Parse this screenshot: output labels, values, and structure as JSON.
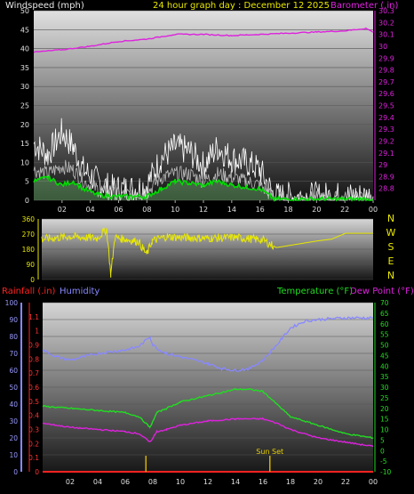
{
  "header": {
    "windspeed_label": "Windspeed (mph)",
    "title": "24 hour graph day : December 12 2025",
    "barometer_label": "Barometer (.in)"
  },
  "bottom_header": {
    "rainfall_label": "Rainfall (.in)",
    "humidity_label": "Humidity",
    "temperature_label": "Temperature (°F)",
    "dewpoint_label": "Dew Point (°F)"
  },
  "colors": {
    "windspeed": "#ffffff",
    "gust": "#ffffff",
    "wind_avg": "#00dd00",
    "barometer": "#dd22dd",
    "direction": "#e8e800",
    "rainfall": "#ff2222",
    "humidity": "#8888ff",
    "temperature": "#22dd22",
    "dewpoint": "#dd22dd",
    "sunmarker": "#d4b000"
  },
  "chart_data": [
    {
      "type": "line",
      "name_hint": "wind-barometer",
      "x_ticks": [
        "02",
        "04",
        "06",
        "08",
        "10",
        "12",
        "14",
        "16",
        "18",
        "20",
        "22",
        "00"
      ],
      "xlim": [
        0,
        24
      ],
      "left_axis": {
        "label": "Windspeed (mph)",
        "ylim": [
          0,
          50
        ],
        "ticks": [
          "0",
          "5",
          "10",
          "15",
          "20",
          "25",
          "30",
          "35",
          "40",
          "45",
          "50"
        ]
      },
      "right_axis": {
        "label": "Barometer (.in)",
        "ylim": [
          28.7,
          30.3
        ],
        "ticks": [
          "28.8",
          "28.9",
          "29",
          "29.1",
          "29.2",
          "29.3",
          "29.4",
          "29.5",
          "29.6",
          "29.7",
          "29.8",
          "29.9",
          "30",
          "30.1",
          "30.2",
          "30.3"
        ]
      },
      "series": [
        {
          "name": "Barometer (.in)",
          "axis": "right",
          "x": [
            0,
            2,
            4,
            6,
            8,
            10,
            12,
            14,
            16,
            18,
            20,
            22,
            23.5,
            24
          ],
          "y": [
            29.95,
            29.97,
            30.0,
            30.04,
            30.06,
            30.1,
            30.1,
            30.09,
            30.1,
            30.11,
            30.12,
            30.13,
            30.15,
            30.12
          ]
        },
        {
          "name": "Wind gust",
          "axis": "left",
          "x": [
            0,
            1,
            2,
            2.8,
            3.5,
            4.5,
            5.5,
            7,
            8,
            9,
            10,
            11,
            12,
            13,
            14,
            15,
            16,
            17,
            24
          ],
          "y": [
            15,
            12,
            18,
            14,
            8,
            5,
            3,
            3,
            4,
            11,
            14,
            13,
            9,
            14,
            11,
            10,
            8,
            1,
            1
          ]
        },
        {
          "name": "Wind speed",
          "axis": "left",
          "x": [
            0,
            1,
            2,
            2.8,
            3.5,
            4.5,
            5.5,
            7,
            8,
            9,
            10,
            11,
            12,
            13,
            14,
            15,
            16,
            17,
            24
          ],
          "y": [
            8,
            7,
            9,
            8,
            5,
            3,
            1.5,
            1.5,
            2,
            6,
            7,
            7,
            5,
            7,
            6,
            5,
            4,
            0.5,
            0.5
          ]
        },
        {
          "name": "Wind average",
          "axis": "left",
          "x": [
            0,
            1,
            2,
            2.8,
            3.5,
            4.5,
            5.5,
            7,
            8,
            9,
            10,
            11,
            12,
            13,
            14,
            15,
            16,
            17,
            24
          ],
          "y": [
            5,
            6,
            4,
            5,
            3,
            1.5,
            1,
            1,
            1,
            3,
            5,
            4.5,
            4,
            5,
            4,
            3.5,
            3,
            0.3,
            0.3
          ]
        }
      ]
    },
    {
      "type": "line",
      "name_hint": "wind-direction",
      "left_axis": {
        "ylim": [
          0,
          360
        ],
        "ticks": [
          "0",
          "90",
          "180",
          "270",
          "360"
        ]
      },
      "right_axis": {
        "ticks": [
          "N",
          "W",
          "S",
          "E",
          "N"
        ]
      },
      "xlim": [
        0,
        24
      ],
      "series": [
        {
          "name": "Wind direction",
          "x": [
            0,
            2,
            4,
            4.7,
            5,
            5.3,
            6,
            7,
            7.6,
            8,
            9,
            10,
            12,
            14,
            16,
            17,
            18.5,
            20,
            21,
            22,
            24
          ],
          "y": [
            240,
            255,
            245,
            300,
            30,
            250,
            240,
            225,
            150,
            230,
            255,
            250,
            245,
            250,
            235,
            190,
            210,
            230,
            240,
            275,
            275
          ]
        }
      ]
    },
    {
      "type": "line",
      "name_hint": "rain-humidity-temperature",
      "xlim": [
        0,
        24
      ],
      "x_ticks": [
        "02",
        "04",
        "06",
        "08",
        "10",
        "12",
        "14",
        "16",
        "18",
        "20",
        "22",
        "00"
      ],
      "rain_axis": {
        "label": "Rainfall (.in)",
        "ylim": [
          0,
          1.2
        ],
        "ticks": [
          "0",
          "0.1",
          "0.2",
          "0.3",
          "0.4",
          "0.5",
          "0.6",
          "0.7",
          "0.8",
          "0.9",
          "1",
          "1.1"
        ]
      },
      "humidity_axis": {
        "label": "Humidity",
        "ylim": [
          0,
          100
        ],
        "ticks": [
          "0",
          "10",
          "20",
          "30",
          "40",
          "50",
          "60",
          "70",
          "80",
          "90",
          "100"
        ]
      },
      "temp_axis": {
        "label": "Temperature (°F)",
        "ylim": [
          -10,
          70
        ],
        "ticks": [
          "-10",
          "-5",
          "0",
          "5",
          "10",
          "15",
          "20",
          "25",
          "30",
          "35",
          "40",
          "45",
          "50",
          "55",
          "60",
          "65",
          "70"
        ]
      },
      "annotations": [
        {
          "text": "Sun Set",
          "x": 16.5
        }
      ],
      "sun_markers_x": [
        7.5,
        16.5
      ],
      "series": [
        {
          "name": "Humidity",
          "axis": "humidity",
          "x": [
            0,
            1,
            2,
            4,
            6,
            7,
            7.8,
            8,
            8.5,
            9,
            10,
            12,
            13,
            14,
            15,
            16,
            17,
            18,
            19,
            20,
            22,
            24
          ],
          "y": [
            72,
            68,
            66,
            70,
            72,
            74,
            80,
            75,
            72,
            70,
            68,
            64,
            61,
            60,
            61,
            66,
            75,
            85,
            89,
            90,
            91,
            91
          ]
        },
        {
          "name": "Temperature",
          "axis": "temp",
          "x": [
            0,
            2,
            4,
            6,
            7,
            7.8,
            8.3,
            9,
            10,
            12,
            14,
            15,
            16,
            17,
            18,
            19,
            20,
            21,
            22,
            23,
            24
          ],
          "y": [
            21,
            20,
            19,
            18,
            16,
            11,
            18,
            20,
            23,
            26,
            29,
            29,
            28,
            22,
            16,
            14,
            12,
            10,
            8,
            7,
            6
          ]
        },
        {
          "name": "Dew Point",
          "axis": "temp",
          "x": [
            0,
            2,
            4,
            6,
            7,
            7.8,
            8.3,
            9,
            10,
            12,
            14,
            16,
            17,
            18,
            19,
            20,
            21,
            22,
            24
          ],
          "y": [
            13,
            11,
            10,
            9,
            8,
            4,
            9,
            10,
            12,
            14,
            15,
            15,
            13,
            10,
            8,
            6,
            5,
            4,
            2
          ]
        },
        {
          "name": "Rainfall",
          "axis": "rain",
          "x": [
            0,
            24
          ],
          "y": [
            0,
            0
          ]
        }
      ]
    }
  ]
}
